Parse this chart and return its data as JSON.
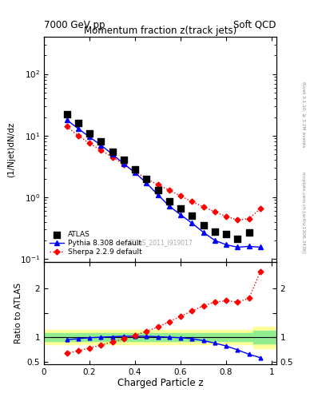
{
  "top_title_left": "7000 GeV pp",
  "top_title_right": "Soft QCD",
  "plot_title": "Momentum fraction z(track jets)",
  "ylabel_main": "(1/Njet)dN/dz",
  "ylabel_ratio": "Ratio to ATLAS",
  "xlabel": "Charged Particle z",
  "right_label_top": "Rivet 3.1.10, ≥ 3.2M events",
  "right_label_bottom": "mcplots.cern.ch [arXiv:1306.3436]",
  "watermark": "ATLAS_2011_I919017",
  "atlas_x": [
    0.1,
    0.15,
    0.2,
    0.25,
    0.3,
    0.35,
    0.4,
    0.45,
    0.5,
    0.55,
    0.6,
    0.65,
    0.7,
    0.75,
    0.8,
    0.85,
    0.9
  ],
  "atlas_y": [
    22,
    16,
    11,
    8.0,
    5.5,
    4.0,
    2.8,
    2.0,
    1.3,
    0.85,
    0.65,
    0.5,
    0.35,
    0.28,
    0.25,
    0.21,
    0.27
  ],
  "pythia_x": [
    0.1,
    0.15,
    0.2,
    0.25,
    0.3,
    0.35,
    0.4,
    0.45,
    0.5,
    0.55,
    0.6,
    0.65,
    0.7,
    0.75,
    0.8,
    0.85,
    0.9,
    0.95
  ],
  "pythia_y": [
    18,
    13,
    9.5,
    7.0,
    5.0,
    3.5,
    2.5,
    1.7,
    1.1,
    0.72,
    0.52,
    0.38,
    0.27,
    0.2,
    0.17,
    0.155,
    0.16,
    0.155
  ],
  "sherpa_x": [
    0.1,
    0.15,
    0.2,
    0.25,
    0.3,
    0.35,
    0.4,
    0.45,
    0.5,
    0.55,
    0.6,
    0.65,
    0.7,
    0.75,
    0.8,
    0.85,
    0.9,
    0.95
  ],
  "sherpa_y": [
    14,
    10,
    7.5,
    5.8,
    4.5,
    3.4,
    2.6,
    2.0,
    1.6,
    1.3,
    1.05,
    0.85,
    0.7,
    0.58,
    0.49,
    0.43,
    0.45,
    0.65
  ],
  "ratio_pythia_x": [
    0.1,
    0.15,
    0.2,
    0.25,
    0.3,
    0.35,
    0.4,
    0.45,
    0.5,
    0.55,
    0.6,
    0.65,
    0.7,
    0.75,
    0.8,
    0.85,
    0.9,
    0.95
  ],
  "ratio_pythia_y": [
    0.95,
    0.97,
    0.99,
    1.0,
    1.01,
    1.02,
    1.02,
    1.02,
    1.01,
    1.0,
    0.99,
    0.97,
    0.93,
    0.88,
    0.82,
    0.74,
    0.65,
    0.58
  ],
  "ratio_sherpa_x": [
    0.1,
    0.15,
    0.2,
    0.25,
    0.3,
    0.35,
    0.4,
    0.45,
    0.5,
    0.55,
    0.6,
    0.65,
    0.7,
    0.75,
    0.8,
    0.85,
    0.9,
    0.95
  ],
  "ratio_sherpa_y": [
    0.67,
    0.72,
    0.78,
    0.84,
    0.9,
    0.97,
    1.04,
    1.12,
    1.21,
    1.32,
    1.43,
    1.54,
    1.65,
    1.72,
    1.75,
    1.72,
    1.8,
    2.35
  ],
  "atlas_color": "black",
  "pythia_color": "blue",
  "sherpa_color": "red",
  "green_band_color": "#90EE90",
  "yellow_band_color": "#FFFF99",
  "ylim_main": [
    0.09,
    400
  ],
  "ylim_ratio": [
    0.45,
    2.55
  ],
  "xlim": [
    0.0,
    1.02
  ]
}
